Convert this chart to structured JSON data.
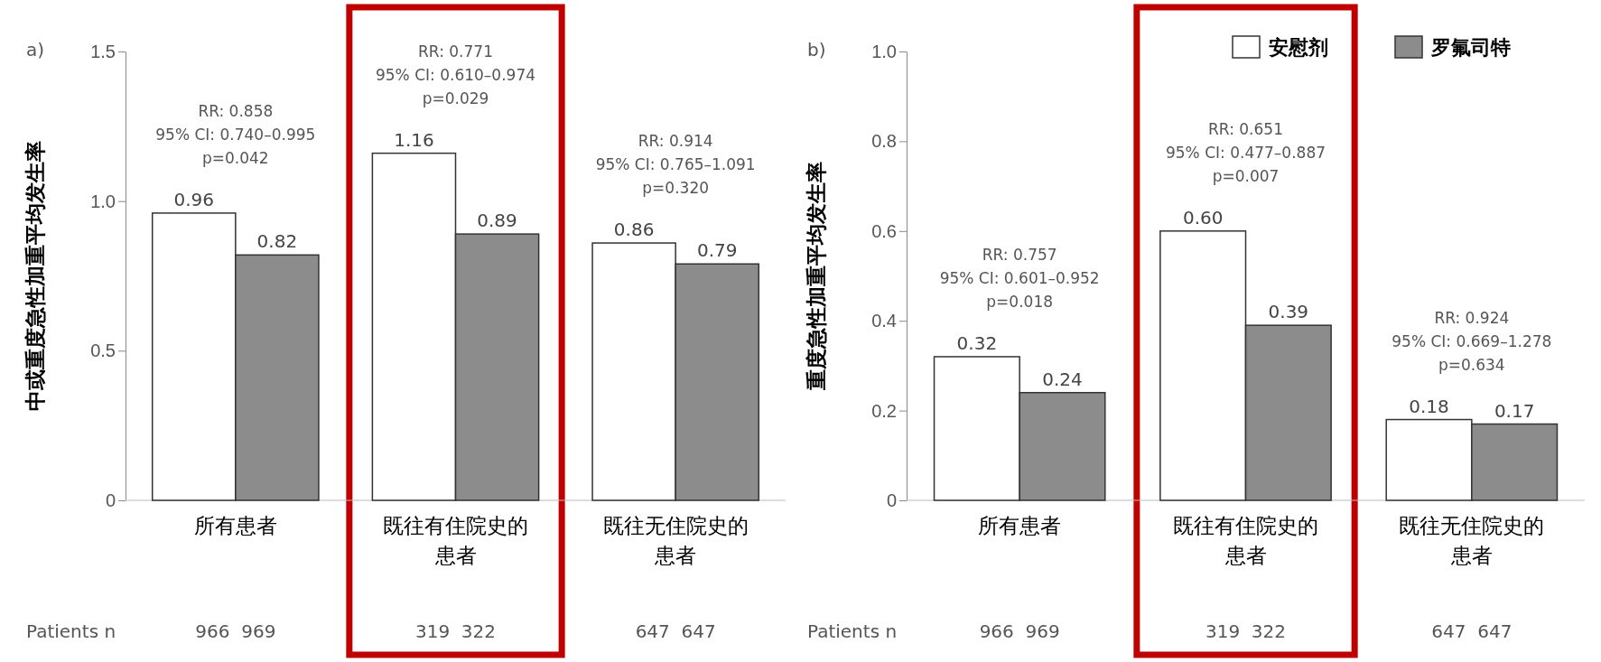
{
  "chart_data": [
    {
      "type": "bar",
      "title": "a)",
      "ylabel": "中或重度急性加重平均发生率",
      "categories": [
        "所有患者",
        "既往有住院史的患者",
        "既往无住院史的患者"
      ],
      "series": [
        {
          "color": "#ffffff",
          "values": [
            0.96,
            1.16,
            0.86
          ],
          "value_labels": [
            "0.96",
            "1.16",
            "0.86"
          ]
        },
        {
          "color": "#8c8c8c",
          "values": [
            0.82,
            0.89,
            0.79
          ],
          "value_labels": [
            "0.82",
            "0.89",
            "0.79"
          ]
        }
      ],
      "ylim": [
        0,
        1.5
      ],
      "yticks": [
        0,
        0.5,
        {
          "value": 1,
          "label": "1.0"
        },
        1.5
      ],
      "annotations": [
        "Patients n",
        "RR: 0.858\n95% CI: 0.740–0.995\np=0.042",
        "RR: 0.771\n95% CI: 0.610–0.974\np=0.029",
        "RR: 0.914\n95% CI: 0.765–1.091\np=0.320",
        "966  969",
        "319  322",
        "647  647"
      ]
    },
    {
      "type": "bar",
      "title": "b)",
      "ylabel": "重度急性加重平均发生率",
      "categories": [
        "所有患者",
        "既往有住院史的患者",
        "既往无住院史的患者"
      ],
      "series": [
        {
          "name": "安慰剂",
          "color": "#ffffff",
          "values": [
            0.32,
            0.6,
            0.18
          ],
          "value_labels": [
            "0.32",
            "0.60",
            "0.18"
          ]
        },
        {
          "name": "罗氟司特",
          "color": "#8c8c8c",
          "values": [
            0.24,
            0.39,
            0.17
          ],
          "value_labels": [
            "0.24",
            "0.39",
            "0.17"
          ]
        }
      ],
      "ylim": [
        0,
        1
      ],
      "yticks": [
        0,
        0.2,
        0.4,
        0.6,
        0.8,
        {
          "value": 1,
          "label": "1.0"
        }
      ],
      "legend": "top right",
      "annotations": [
        "Patients n",
        "RR: 0.757\n95% CI: 0.601–0.952\np=0.018",
        "RR: 0.651\n95% CI: 0.477–0.887\np=0.007",
        "RR: 0.924\n95% CI: 0.669–1.278\np=0.634",
        "966  969",
        "319  322",
        "647  647"
      ]
    }
  ]
}
